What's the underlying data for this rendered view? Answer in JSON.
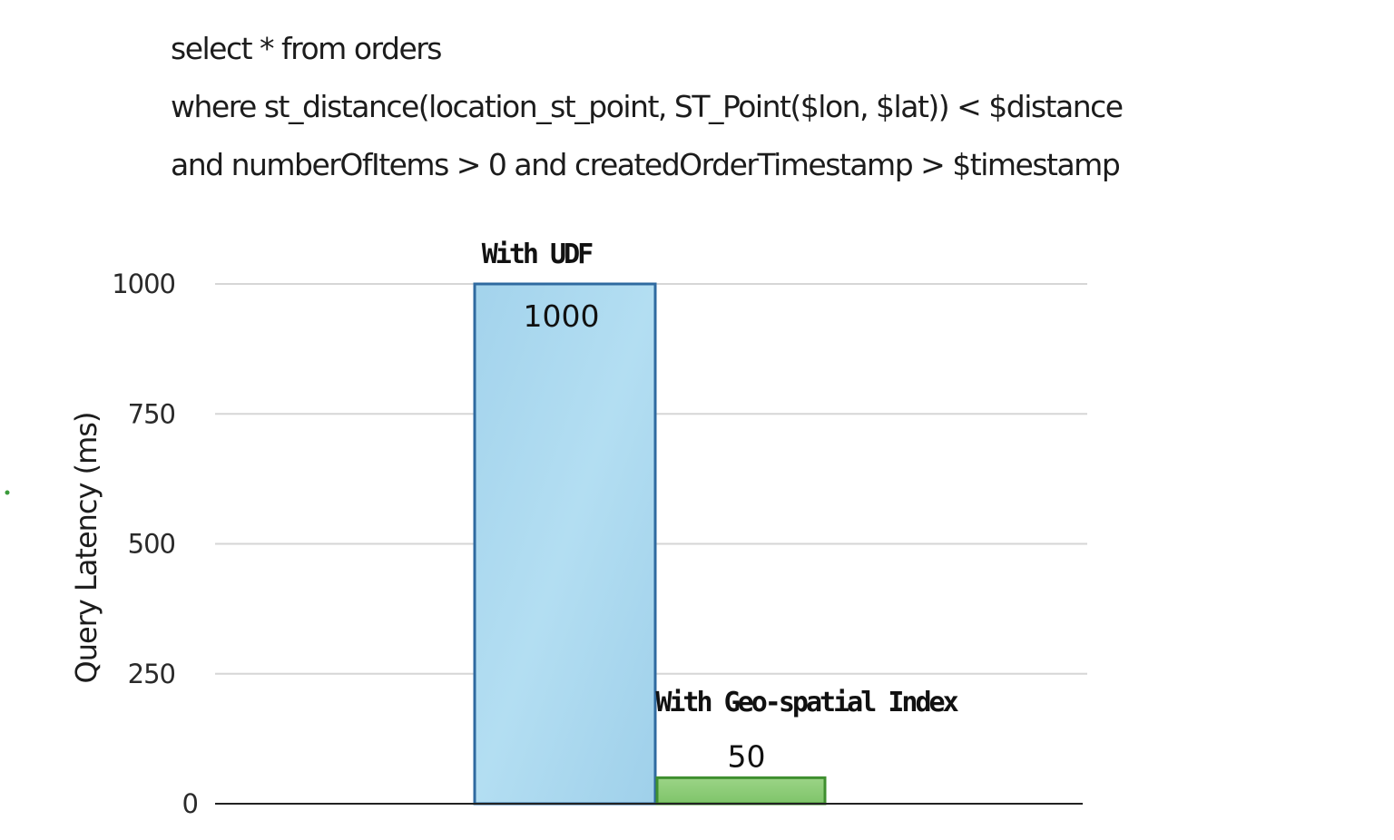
{
  "query": {
    "lines": [
      "select * from orders",
      "where st_distance(location_st_point, ST_Point($lon, $lat)) < $distance",
      "and numberOfItems > 0 and createdOrderTimestamp > $timestamp"
    ]
  },
  "chart_data": {
    "type": "bar",
    "categories": [
      "With UDF",
      "With Geo-spatial Index"
    ],
    "values": [
      1000,
      50
    ],
    "data_labels": [
      "1000",
      "50"
    ],
    "colors": [
      "#a9d7ee",
      "#8fcf78"
    ],
    "border_colors": [
      "#2f6aa0",
      "#3f8f2f"
    ],
    "title": "",
    "xlabel": "",
    "ylabel": "Query Latency (ms)",
    "ylim": [
      0,
      1000
    ],
    "yticks": [
      "0",
      "250",
      "500",
      "750",
      "1000"
    ],
    "grid": true,
    "legend": "none"
  }
}
